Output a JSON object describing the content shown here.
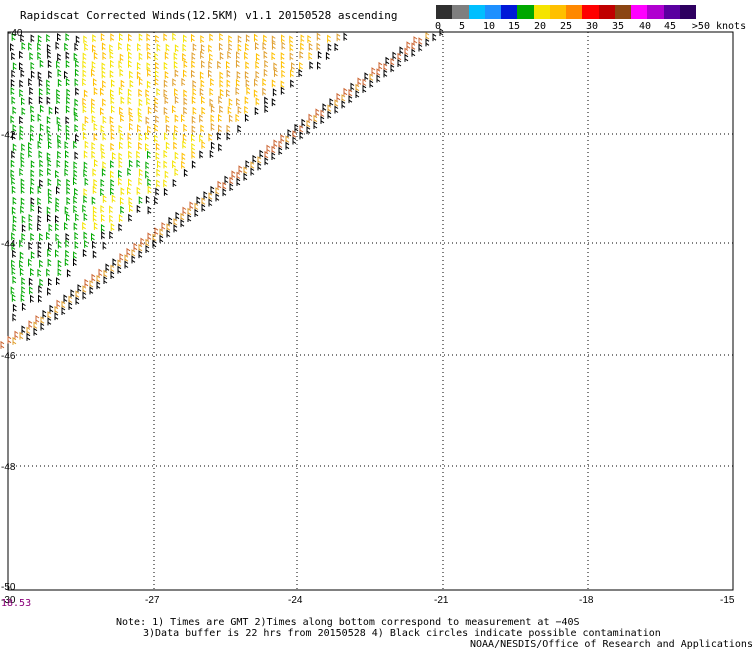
{
  "title": "Rapidscat Corrected Winds(12.5KM) v1.1 20150528 ascending",
  "legend": {
    "colors": [
      "#2f2f2f",
      "#7f7f7f",
      "#00bfff",
      "#1e90ff",
      "#0018d8",
      "#00a800",
      "#f5e400",
      "#ffc000",
      "#ff8800",
      "#ff0000",
      "#c00000",
      "#8b4513",
      "#ff00ff",
      "#b000d0",
      "#5a00a0",
      "#2e0060"
    ],
    "labels": [
      "0",
      "5",
      "10",
      "15",
      "20",
      "25",
      "30",
      "35",
      "40",
      "45",
      ">50 knots"
    ]
  },
  "map": {
    "lon_ticks": [
      "-27",
      "-24",
      "-21",
      "-18",
      "-15"
    ],
    "lat_ticks": [
      "-42",
      "-44",
      "-46",
      "-48"
    ],
    "lat_top": "-40",
    "corner_lat": "-50",
    "corner_lon": "-30"
  },
  "time_label": "18.53",
  "notes": {
    "line1": "Note: 1) Times are GMT 2)Times along bottom correspond to measurement at −40S",
    "line2": "3)Data buffer is 22 hrs from 20150528 4) Black circles indicate possible contamination",
    "credit": "NOAA/NESDIS/Office of Research and Applications"
  }
}
